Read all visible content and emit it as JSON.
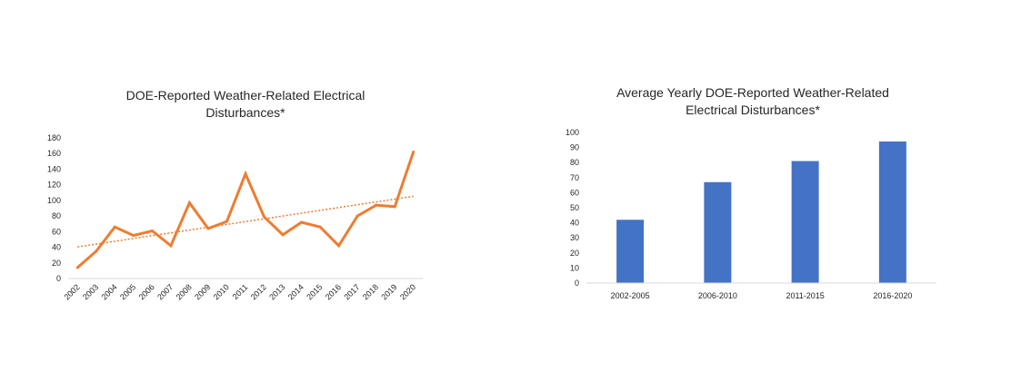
{
  "chart_data": [
    {
      "type": "line",
      "title": "DOE-Reported Weather-Related Electrical Disturbances*",
      "title_lines": [
        "DOE-Reported Weather-Related Electrical",
        "Disturbances*"
      ],
      "xlabel": "",
      "ylabel": "",
      "categories": [
        "2002",
        "2003",
        "2004",
        "2005",
        "2006",
        "2007",
        "2008",
        "2009",
        "2010",
        "2011",
        "2012",
        "2013",
        "2014",
        "2015",
        "2016",
        "2017",
        "2018",
        "2019",
        "2020"
      ],
      "series": [
        {
          "values": [
            14,
            35,
            66,
            55,
            61,
            42,
            97,
            64,
            73,
            134,
            79,
            56,
            72,
            66,
            42,
            80,
            94,
            92,
            162
          ],
          "color": "#ED7D31"
        }
      ],
      "trendline": {
        "type": "linear",
        "style": "dotted",
        "color": "#ED7D31"
      },
      "ylim": [
        0,
        180
      ],
      "yticks": [
        0,
        20,
        40,
        60,
        80,
        100,
        120,
        140,
        160,
        180
      ],
      "grid": false,
      "legend": "none"
    },
    {
      "type": "bar",
      "title": "Average Yearly DOE-Reported Weather-Related Electrical Disturbances*",
      "title_lines": [
        "Average Yearly DOE-Reported Weather-Related",
        "Electrical Disturbances*"
      ],
      "xlabel": "",
      "ylabel": "",
      "categories": [
        "2002-2005",
        "2006-2010",
        "2011-2015",
        "2016-2020"
      ],
      "values": [
        42,
        67,
        81,
        94
      ],
      "color": "#4472C4",
      "ylim": [
        0,
        100
      ],
      "yticks": [
        0,
        10,
        20,
        30,
        40,
        50,
        60,
        70,
        80,
        90,
        100
      ],
      "grid": false,
      "legend": "none"
    }
  ]
}
